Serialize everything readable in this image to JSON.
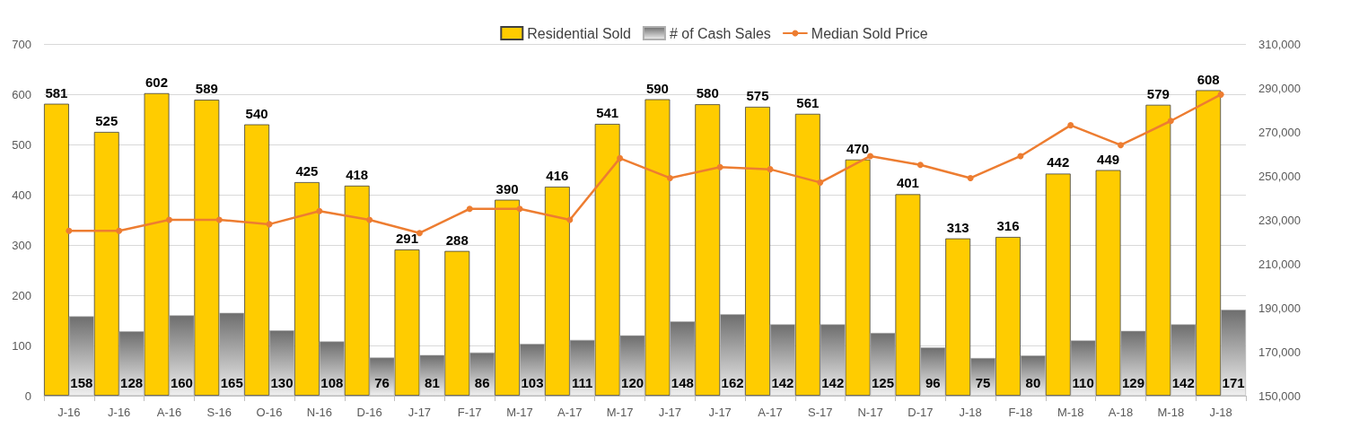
{
  "chart_data": {
    "type": "bar",
    "categories": [
      "J-16",
      "J-16",
      "A-16",
      "S-16",
      "O-16",
      "N-16",
      "D-16",
      "J-17",
      "F-17",
      "M-17",
      "A-17",
      "M-17",
      "J-17",
      "J-17",
      "A-17",
      "S-17",
      "N-17",
      "D-17",
      "J-18",
      "F-18",
      "M-18",
      "A-18",
      "M-18",
      "J-18"
    ],
    "series": [
      {
        "name": "Residential Sold",
        "type": "bar",
        "color": "#ffcc00",
        "values": [
          581,
          525,
          602,
          589,
          540,
          425,
          418,
          291,
          288,
          390,
          416,
          541,
          590,
          580,
          575,
          561,
          470,
          401,
          313,
          316,
          442,
          449,
          579,
          608
        ],
        "value_labels": [
          "581",
          "525",
          "602",
          "589",
          "540",
          "425",
          "418",
          "291",
          "288",
          "390",
          "416",
          "541",
          "590",
          "580",
          "575",
          "561",
          "470",
          "401",
          "313",
          "316",
          "442",
          "449",
          "579",
          "608"
        ]
      },
      {
        "name": "# of Cash Sales",
        "color": "#afafaf",
        "values": [
          158,
          128,
          160,
          165,
          130,
          108,
          76,
          81,
          86,
          103,
          111,
          120,
          148,
          162,
          142,
          142,
          125,
          96,
          75,
          80,
          110,
          129,
          142,
          171
        ],
        "value_labels": [
          "158",
          "128",
          "160",
          "165",
          "130",
          "108",
          "76",
          "81",
          "86",
          "103",
          "111",
          "120",
          "148",
          "162",
          "142",
          "142",
          "125",
          "96",
          "75",
          "80",
          "110",
          "129",
          "142",
          "171"
        ]
      },
      {
        "name": "Median Sold Price",
        "type": "line",
        "axis": "y2",
        "color": "#ed7d31",
        "values": [
          225000,
          225000,
          230000,
          230000,
          228000,
          234000,
          230000,
          224000,
          235000,
          235000,
          230000,
          258000,
          249000,
          254000,
          253000,
          247000,
          259000,
          255000,
          249000,
          259000,
          273000,
          264000,
          275000,
          287000
        ]
      }
    ],
    "ylim": [
      0,
      700
    ],
    "yticks": [
      0,
      100,
      200,
      300,
      400,
      500,
      600,
      700
    ],
    "y2lim": [
      150000,
      310000
    ],
    "y2ticks": [
      {
        "value": 150000,
        "label": "150,000"
      },
      {
        "value": 170000,
        "label": "170,000"
      },
      {
        "value": 190000,
        "label": "190,000"
      },
      {
        "value": 210000,
        "label": "210,000"
      },
      {
        "value": 230000,
        "label": "230,000"
      },
      {
        "value": 250000,
        "label": "250,000"
      },
      {
        "value": 270000,
        "label": "270,000"
      },
      {
        "value": 290000,
        "label": "290,000"
      },
      {
        "value": 310000,
        "label": "310,000"
      }
    ],
    "grid": "y",
    "legend": "top",
    "marker": "circle",
    "line_style": "solid"
  }
}
